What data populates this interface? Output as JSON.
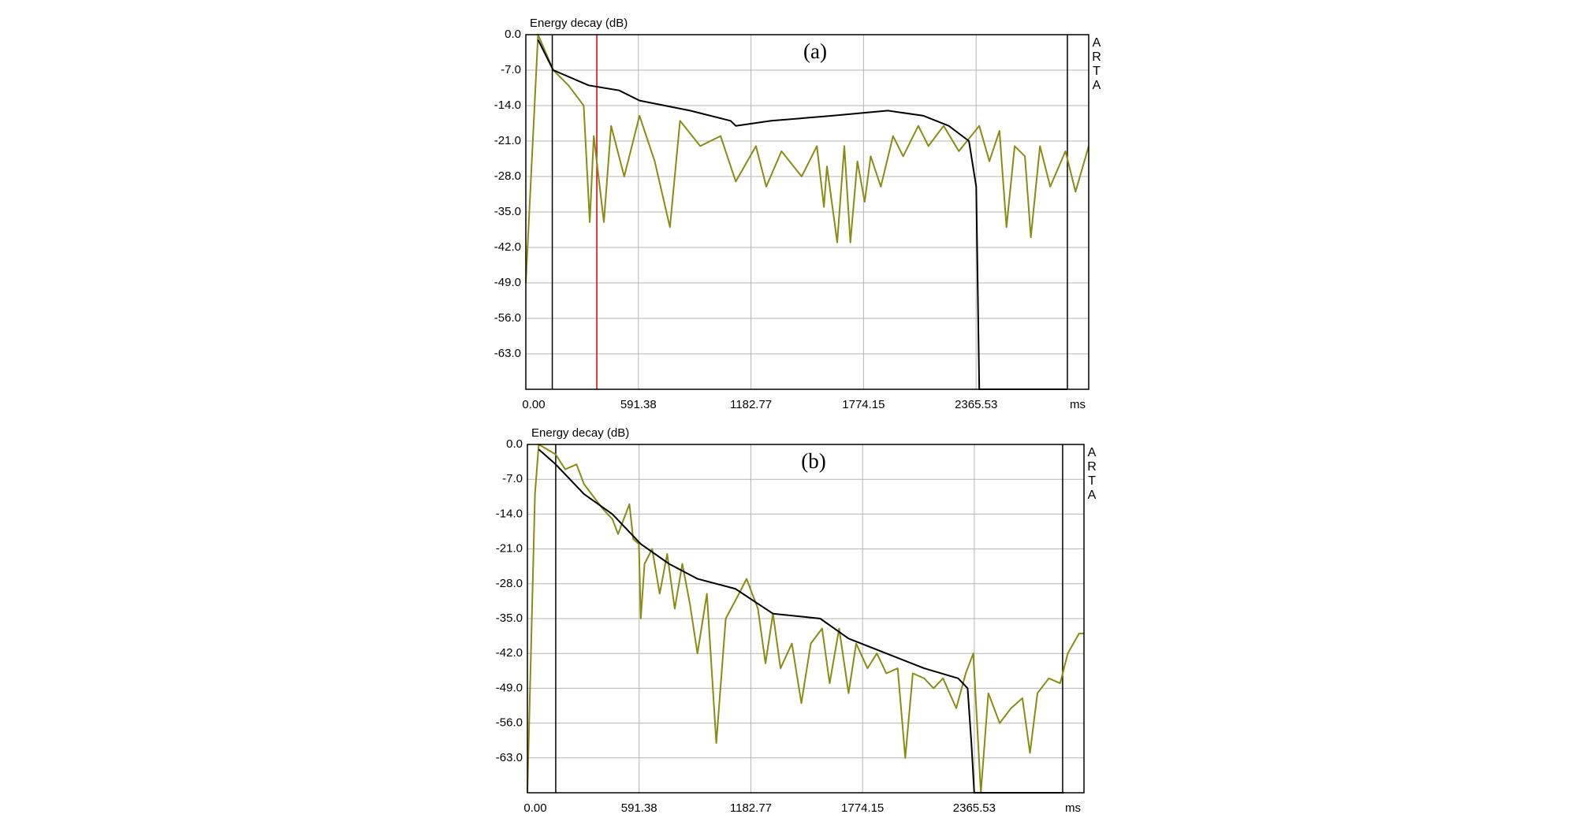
{
  "chart_data": [
    {
      "type": "line",
      "annotation": "(a)",
      "ylabel": "Energy decay (dB)",
      "xlabel": "ms",
      "side_label": "ARTA",
      "xlim": [
        0,
        2957
      ],
      "ylim": [
        -70,
        0
      ],
      "xticks": [
        {
          "value": 0,
          "label": "0.00"
        },
        591.38,
        1182.77,
        1774.15,
        2365.53
      ],
      "yticks": [
        {
          "value": 0,
          "label": "0.0"
        },
        {
          "value": -7,
          "label": "-7.0"
        },
        {
          "value": -14,
          "label": "-14.0"
        },
        {
          "value": -21,
          "label": "-21.0"
        },
        {
          "value": -28,
          "label": "-28.0"
        },
        {
          "value": -35,
          "label": "-35.0"
        },
        {
          "value": -42,
          "label": "-42.0"
        },
        {
          "value": -49,
          "label": "-49.0"
        },
        {
          "value": -56,
          "label": "-56.0"
        },
        {
          "value": -63,
          "label": "-63.0"
        }
      ],
      "grid": true,
      "markers": [
        {
          "x": 139,
          "color": "#000000"
        },
        {
          "x": 373,
          "color": "#d00000"
        },
        {
          "x": 2845,
          "color": "#000000"
        }
      ],
      "series": [
        {
          "color": "#8b8b14",
          "x": [
            0,
            64,
            144,
            224,
            304,
            336,
            357,
            410,
            448,
            517,
            597,
            677,
            757,
            810,
            916,
            1023,
            1103,
            1209,
            1263,
            1343,
            1449,
            1529,
            1566,
            1582,
            1636,
            1673,
            1705,
            1742,
            1780,
            1812,
            1865,
            1929,
            1982,
            2062,
            2115,
            2195,
            2275,
            2382,
            2435,
            2488,
            2525,
            2568,
            2622,
            2653,
            2701,
            2755,
            2835,
            2888,
            2957
          ],
          "values": [
            -49,
            0,
            -7,
            -10,
            -14,
            -37,
            -20,
            -37,
            -18,
            -28,
            -16,
            -25,
            -38,
            -17,
            -22,
            -20,
            -29,
            -22,
            -30,
            -23,
            -28,
            -22,
            -34,
            -26,
            -41,
            -22,
            -41,
            -25,
            -33,
            -24,
            -30,
            -20,
            -24,
            -18,
            -22,
            -18,
            -23,
            -18,
            -25,
            -19,
            -38,
            -22,
            -24,
            -40,
            -22,
            -30,
            -23,
            -31,
            -22
          ]
        },
        {
          "color": "#000000",
          "x": [
            64,
            144,
            330,
            490,
            597,
            863,
            1076,
            1103,
            1289,
            1609,
            1902,
            2089,
            2222,
            2328,
            2366,
            2382,
            2845
          ],
          "values": [
            -1,
            -7,
            -10,
            -11,
            -13,
            -15,
            -17,
            -18,
            -17,
            -16,
            -15,
            -16,
            -18,
            -21,
            -30,
            -70,
            -70
          ]
        }
      ]
    },
    {
      "type": "line",
      "annotation": "(b)",
      "ylabel": "Energy decay (dB)",
      "xlabel": "ms",
      "side_label": "ARTA",
      "xlim": [
        0,
        2946
      ],
      "ylim": [
        -70,
        0
      ],
      "xticks": [
        {
          "value": 0,
          "label": "0.00"
        },
        591.38,
        1182.77,
        1774.15,
        2365.53
      ],
      "yticks": [
        {
          "value": 0,
          "label": "0.0"
        },
        {
          "value": -7,
          "label": "-7.0"
        },
        {
          "value": -14,
          "label": "-14.0"
        },
        {
          "value": -21,
          "label": "-21.0"
        },
        {
          "value": -28,
          "label": "-28.0"
        },
        {
          "value": -35,
          "label": "-35.0"
        },
        {
          "value": -42,
          "label": "-42.0"
        },
        {
          "value": -49,
          "label": "-49.0"
        },
        {
          "value": -56,
          "label": "-56.0"
        },
        {
          "value": -63,
          "label": "-63.0"
        }
      ],
      "grid": true,
      "markers": [
        {
          "x": 150,
          "color": "#000000"
        },
        {
          "x": 2833,
          "color": "#000000"
        }
      ],
      "series": [
        {
          "color": "#8b8b14",
          "x": [
            0,
            40,
            60,
            150,
            200,
            260,
            300,
            400,
            450,
            480,
            500,
            540,
            560,
            590,
            600,
            620,
            660,
            700,
            740,
            780,
            820,
            860,
            900,
            950,
            1000,
            1050,
            1120,
            1160,
            1220,
            1260,
            1300,
            1340,
            1400,
            1450,
            1500,
            1560,
            1600,
            1650,
            1700,
            1740,
            1800,
            1850,
            1900,
            1960,
            2000,
            2040,
            2100,
            2150,
            2200,
            2270,
            2320,
            2360,
            2400,
            2440,
            2500,
            2560,
            2620,
            2660,
            2700,
            2760,
            2820,
            2860,
            2920,
            2946
          ],
          "values": [
            -70,
            -10,
            0,
            -2,
            -5,
            -4,
            -8,
            -13,
            -15,
            -18,
            -16,
            -12,
            -19,
            -20,
            -35,
            -24,
            -21,
            -30,
            -22,
            -33,
            -24,
            -32,
            -42,
            -30,
            -60,
            -35,
            -30,
            -27,
            -33,
            -44,
            -34,
            -45,
            -40,
            -52,
            -40,
            -37,
            -48,
            -37,
            -50,
            -40,
            -45,
            -42,
            -46,
            -45,
            -63,
            -46,
            -47,
            -49,
            -47,
            -53,
            -46,
            -42,
            -70,
            -50,
            -56,
            -53,
            -51,
            -62,
            -50,
            -47,
            -48,
            -42,
            -38,
            -38
          ]
        },
        {
          "color": "#000000",
          "x": [
            60,
            150,
            300,
            450,
            600,
            750,
            900,
            1100,
            1300,
            1550,
            1700,
            1900,
            2100,
            2280,
            2330,
            2350,
            2365,
            2840
          ],
          "values": [
            -1,
            -4,
            -10,
            -14,
            -20,
            -24,
            -27,
            -29,
            -34,
            -35,
            -39,
            -42,
            -45,
            -47,
            -49,
            -60,
            -70,
            -70
          ]
        }
      ]
    }
  ]
}
